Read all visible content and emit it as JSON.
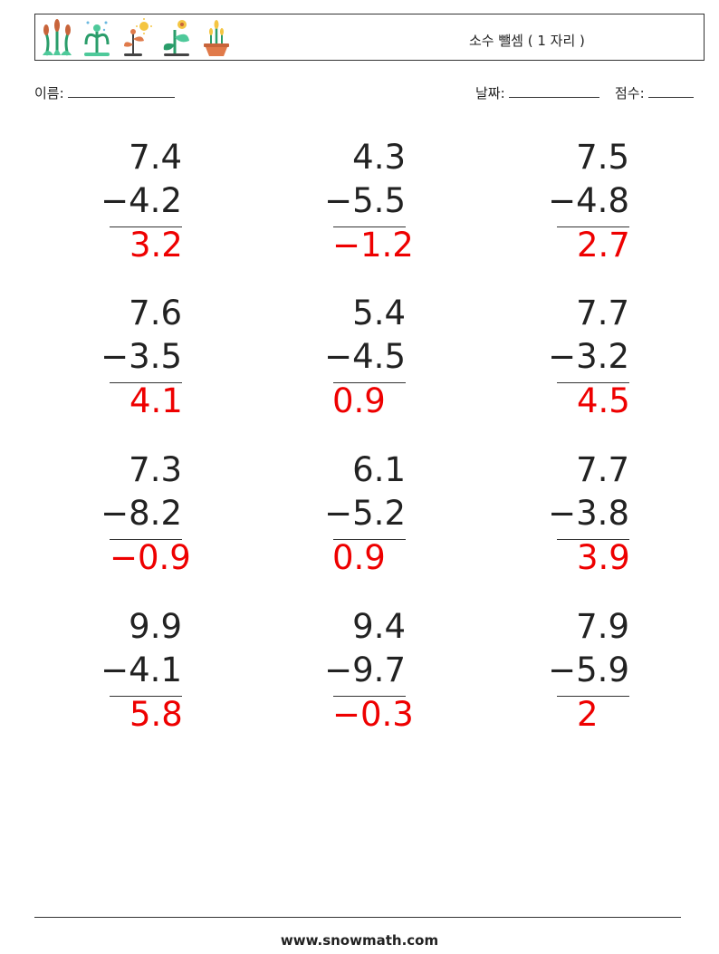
{
  "header": {
    "title": "소수 뺄셈 ( 1 자리 )",
    "icons": [
      "cattail-plant-icon",
      "sprouting-plant-icon",
      "flower-sun-icon",
      "leafy-plant-icon",
      "potted-plant-icon"
    ]
  },
  "fields": {
    "name_label": "이름:",
    "date_label": "날짜:",
    "score_label": "점수:"
  },
  "problems": [
    {
      "minuend": "7.4",
      "subtrahend": "−4.2",
      "answer": "3.2"
    },
    {
      "minuend": "4.3",
      "subtrahend": "−5.5",
      "answer": "−1.2"
    },
    {
      "minuend": "7.5",
      "subtrahend": "−4.8",
      "answer": "2.7"
    },
    {
      "minuend": "7.6",
      "subtrahend": "−3.5",
      "answer": "4.1"
    },
    {
      "minuend": "5.4",
      "subtrahend": "−4.5",
      "answer": "0.9"
    },
    {
      "minuend": "7.7",
      "subtrahend": "−3.2",
      "answer": "4.5"
    },
    {
      "minuend": "7.3",
      "subtrahend": "−8.2",
      "answer": "−0.9"
    },
    {
      "minuend": "6.1",
      "subtrahend": "−5.2",
      "answer": "0.9"
    },
    {
      "minuend": "7.7",
      "subtrahend": "−3.8",
      "answer": "3.9"
    },
    {
      "minuend": "9.9",
      "subtrahend": "−4.1",
      "answer": "5.8"
    },
    {
      "minuend": "9.4",
      "subtrahend": "−9.7",
      "answer": "−0.3"
    },
    {
      "minuend": "7.9",
      "subtrahend": "−5.9",
      "answer": "2"
    }
  ],
  "footer": {
    "site": "www.snowmath.com"
  },
  "colors": {
    "answer": "#ee0000",
    "text": "#222222"
  }
}
